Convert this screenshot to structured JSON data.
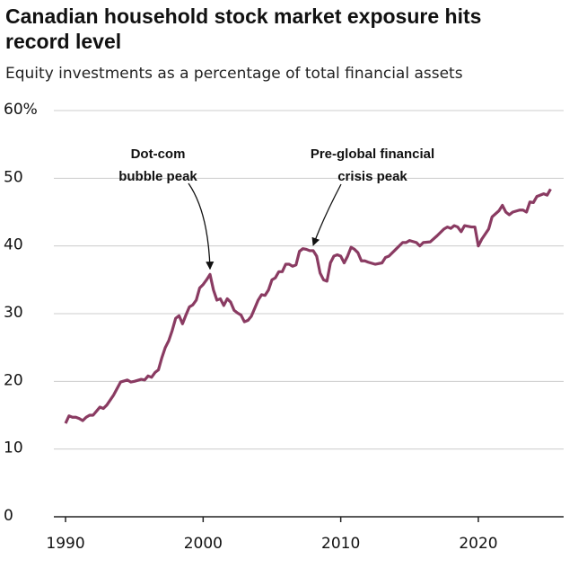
{
  "chart_data": {
    "type": "line",
    "title": "Canadian household stock market exposure hits record level",
    "subtitle": "Equity investments as a percentage of total financial assets",
    "color": "#8a3b62",
    "xlim": [
      1989.15,
      2026.2
    ],
    "xticks": [
      1990,
      2000,
      2010,
      2020
    ],
    "ylim": [
      0,
      60
    ],
    "yticks": [
      0,
      10,
      20,
      30,
      40,
      50,
      {
        "value": 60,
        "label": "60%"
      }
    ],
    "grid": true,
    "annotations": [
      {
        "lines": [
          "Dot-com",
          "bubble peak"
        ],
        "x": 2000.5,
        "y": 35.8
      },
      {
        "lines": [
          "Pre-global financial",
          "crisis peak"
        ],
        "x": 2008.0,
        "y": 39.3
      }
    ],
    "x": [
      1990.0,
      1990.25,
      1990.5,
      1990.75,
      1991.0,
      1991.25,
      1991.5,
      1991.75,
      1992.0,
      1992.5,
      1992.75,
      1993.0,
      1993.5,
      1994.0,
      1994.5,
      1994.75,
      1995.0,
      1995.5,
      1995.75,
      1996.0,
      1996.25,
      1996.5,
      1996.75,
      1997.0,
      1997.25,
      1997.5,
      1997.75,
      1998.0,
      1998.25,
      1998.5,
      1998.75,
      1999.0,
      1999.25,
      1999.5,
      1999.75,
      2000.0,
      2000.25,
      2000.5,
      2000.75,
      2001.0,
      2001.25,
      2001.5,
      2001.75,
      2002.0,
      2002.25,
      2002.5,
      2002.75,
      2003.0,
      2003.25,
      2003.5,
      2003.75,
      2004.0,
      2004.25,
      2004.5,
      2004.75,
      2005.0,
      2005.25,
      2005.5,
      2005.75,
      2006.0,
      2006.25,
      2006.5,
      2006.75,
      2007.0,
      2007.25,
      2007.5,
      2007.75,
      2008.0,
      2008.25,
      2008.5,
      2008.75,
      2009.0,
      2009.25,
      2009.5,
      2009.75,
      2010.0,
      2010.25,
      2010.5,
      2010.75,
      2011.0,
      2011.25,
      2011.5,
      2011.75,
      2012.0,
      2012.5,
      2013.0,
      2013.25,
      2013.5,
      2014.0,
      2014.5,
      2014.75,
      2015.0,
      2015.5,
      2015.75,
      2016.0,
      2016.5,
      2017.0,
      2017.5,
      2017.75,
      2018.0,
      2018.25,
      2018.5,
      2018.75,
      2019.0,
      2019.5,
      2019.75,
      2020.0,
      2020.25,
      2020.75,
      2021.0,
      2021.5,
      2021.75,
      2022.0,
      2022.25,
      2022.5,
      2023.0,
      2023.25,
      2023.5,
      2023.75,
      2024.0,
      2024.25,
      2024.5,
      2024.75,
      2025.0,
      2025.25
    ],
    "values": [
      13.8,
      14.9,
      14.7,
      14.7,
      14.5,
      14.2,
      14.7,
      15.0,
      15.0,
      16.2,
      16.0,
      16.5,
      18.0,
      19.9,
      20.2,
      19.9,
      20.0,
      20.3,
      20.2,
      20.8,
      20.6,
      21.3,
      21.7,
      23.5,
      25.0,
      26.0,
      27.5,
      29.3,
      29.7,
      28.5,
      29.8,
      31.0,
      31.3,
      32.0,
      33.8,
      34.3,
      35.0,
      35.8,
      33.5,
      32.0,
      32.2,
      31.2,
      32.2,
      31.7,
      30.5,
      30.1,
      29.8,
      28.8,
      29.0,
      29.6,
      30.8,
      32.0,
      32.8,
      32.7,
      33.5,
      35.0,
      35.3,
      36.2,
      36.2,
      37.3,
      37.3,
      37.0,
      37.2,
      39.2,
      39.6,
      39.5,
      39.3,
      39.3,
      38.5,
      36.0,
      35.0,
      34.8,
      37.5,
      38.5,
      38.7,
      38.5,
      37.5,
      38.5,
      39.8,
      39.5,
      39.0,
      37.8,
      37.8,
      37.6,
      37.3,
      37.5,
      38.3,
      38.5,
      39.5,
      40.5,
      40.5,
      40.8,
      40.5,
      40.0,
      40.5,
      40.6,
      41.5,
      42.5,
      42.8,
      42.6,
      43.0,
      42.8,
      42.1,
      43.0,
      42.8,
      42.8,
      40.0,
      41.0,
      42.5,
      44.3,
      45.2,
      46.0,
      45.0,
      44.6,
      45.0,
      45.3,
      45.3,
      45.0,
      46.5,
      46.4,
      47.3,
      47.5,
      47.7,
      47.5,
      48.4
    ]
  }
}
